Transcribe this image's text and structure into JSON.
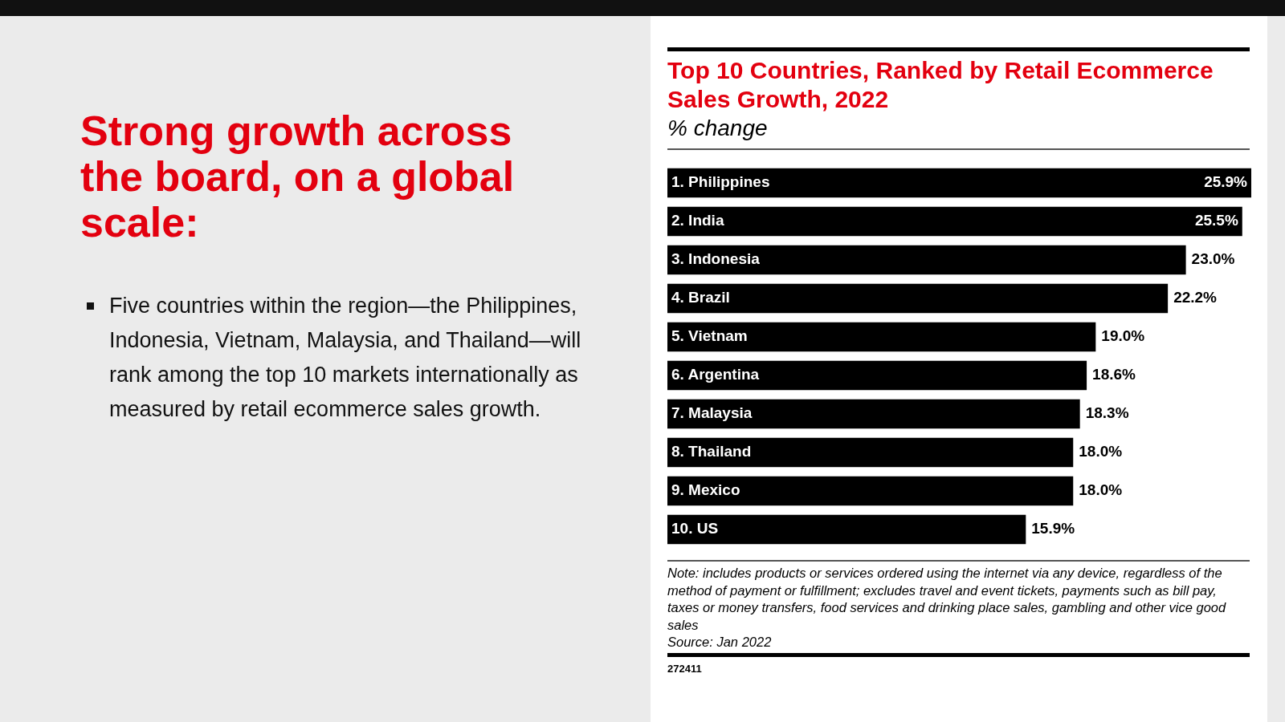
{
  "chart_data": {
    "type": "bar",
    "orientation": "horizontal",
    "title": "Top 10 Countries, Ranked by Retail Ecommerce Sales Growth, 2022",
    "subtitle": "% change",
    "categories": [
      "1. Philippines",
      "2. India",
      "3. Indonesia",
      "4. Brazil",
      "5. Vietnam",
      "6. Argentina",
      "7. Malaysia",
      "8. Thailand",
      "9. Mexico",
      "10. US"
    ],
    "values": [
      25.9,
      25.5,
      23.0,
      22.2,
      19.0,
      18.6,
      18.3,
      18.0,
      18.0,
      15.9
    ],
    "value_labels": [
      "25.9%",
      "25.5%",
      "23.0%",
      "22.2%",
      "19.0%",
      "18.6%",
      "18.3%",
      "18.0%",
      "18.0%",
      "15.9%"
    ],
    "color": "#000000",
    "xlim": [
      0,
      25.9
    ],
    "tick_labels": false,
    "annotations": [
      "Strong growth across the board, on a global scale:",
      "Five countries within the region—the Philippines, Indonesia, Vietnam, Malaysia, and Thailand—will rank among the top 10 markets internationally as measured by retail ecommerce sales growth.",
      "Note: includes products or services ordered using the internet via any device, regardless of the method of payment or fulfillment; excludes travel and event tickets, payments such as bill pay, taxes or money transfers, food services and drinking place sales, gambling and other vice good sales",
      "Source: Jan 2022",
      "272411"
    ]
  }
}
